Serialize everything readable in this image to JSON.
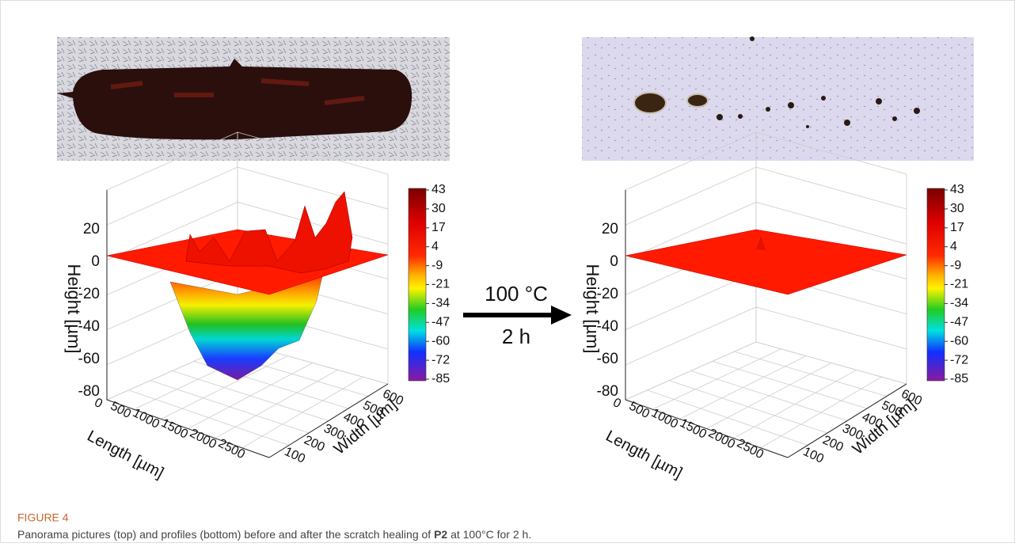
{
  "figure": {
    "panels": [
      {
        "z_label": "Height [µm]",
        "x_label": "Length [µm]",
        "y_label": "Width [µm]",
        "z_ticks": [
          "20",
          "0",
          "-20",
          "-40",
          "-60",
          "-80"
        ],
        "x_ticks": [
          "0",
          "500",
          "1000",
          "1500",
          "2000",
          "2500"
        ],
        "y_ticks": [
          "100",
          "200",
          "300",
          "400",
          "500",
          "600"
        ],
        "colorbar_ticks": [
          "43",
          "30",
          "17",
          "4",
          "-9",
          "-21",
          "-34",
          "-47",
          "-60",
          "-72",
          "-85"
        ]
      },
      {
        "z_label": "Height [µm]",
        "x_label": "Length [µm]",
        "y_label": "Width [µm]",
        "z_ticks": [
          "20",
          "0",
          "-20",
          "-40",
          "-60",
          "-80"
        ],
        "x_ticks": [
          "0",
          "500",
          "1000",
          "1500",
          "2000",
          "2500"
        ],
        "y_ticks": [
          "100",
          "200",
          "300",
          "400",
          "500",
          "600"
        ],
        "colorbar_ticks": [
          "43",
          "30",
          "17",
          "4",
          "-9",
          "-21",
          "-34",
          "-47",
          "-60",
          "-72",
          "-85"
        ]
      }
    ],
    "arrow": {
      "top": "100 °C",
      "bottom": "2 h"
    },
    "caption": {
      "label": "FIGURE 4",
      "before": "Panorama pictures (top) and profiles (bottom) before and after the scratch healing of ",
      "bold": "P2",
      "after": " at 100°C for 2 h."
    }
  }
}
